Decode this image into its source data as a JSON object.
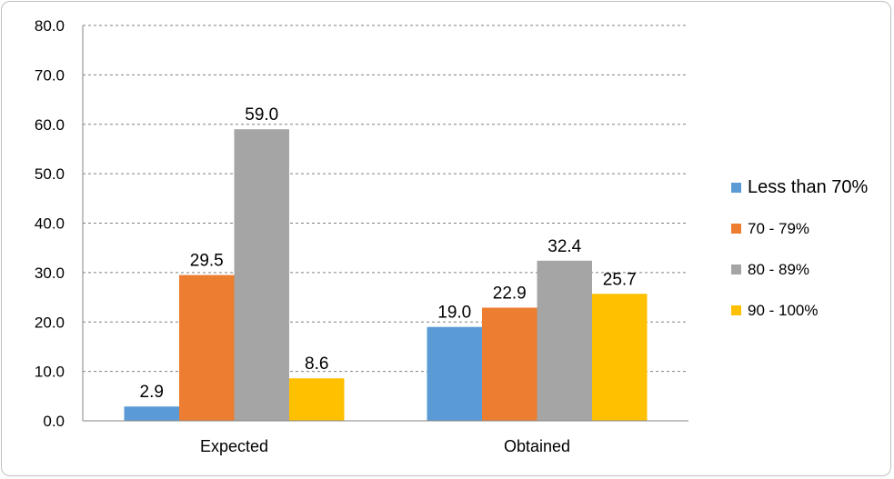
{
  "chart_data": {
    "type": "bar",
    "categories": [
      "Expected",
      "Obtained"
    ],
    "series": [
      {
        "name": "Less than 70%",
        "values": [
          2.9,
          19.0
        ],
        "color": "#5b9bd5"
      },
      {
        "name": "70 - 79%",
        "values": [
          29.5,
          22.9
        ],
        "color": "#ed7d31"
      },
      {
        "name": "80 - 89%",
        "values": [
          59.0,
          32.4
        ],
        "color": "#a5a5a5"
      },
      {
        "name": "90 - 100%",
        "values": [
          8.6,
          25.7
        ],
        "color": "#ffc000"
      }
    ],
    "ylim": [
      0,
      80
    ],
    "yticks": [
      "0.0",
      "10.0",
      "20.0",
      "30.0",
      "40.0",
      "50.0",
      "60.0",
      "70.0",
      "80.0"
    ],
    "grid": true,
    "legend_position": "right",
    "value_decimals": 1
  }
}
